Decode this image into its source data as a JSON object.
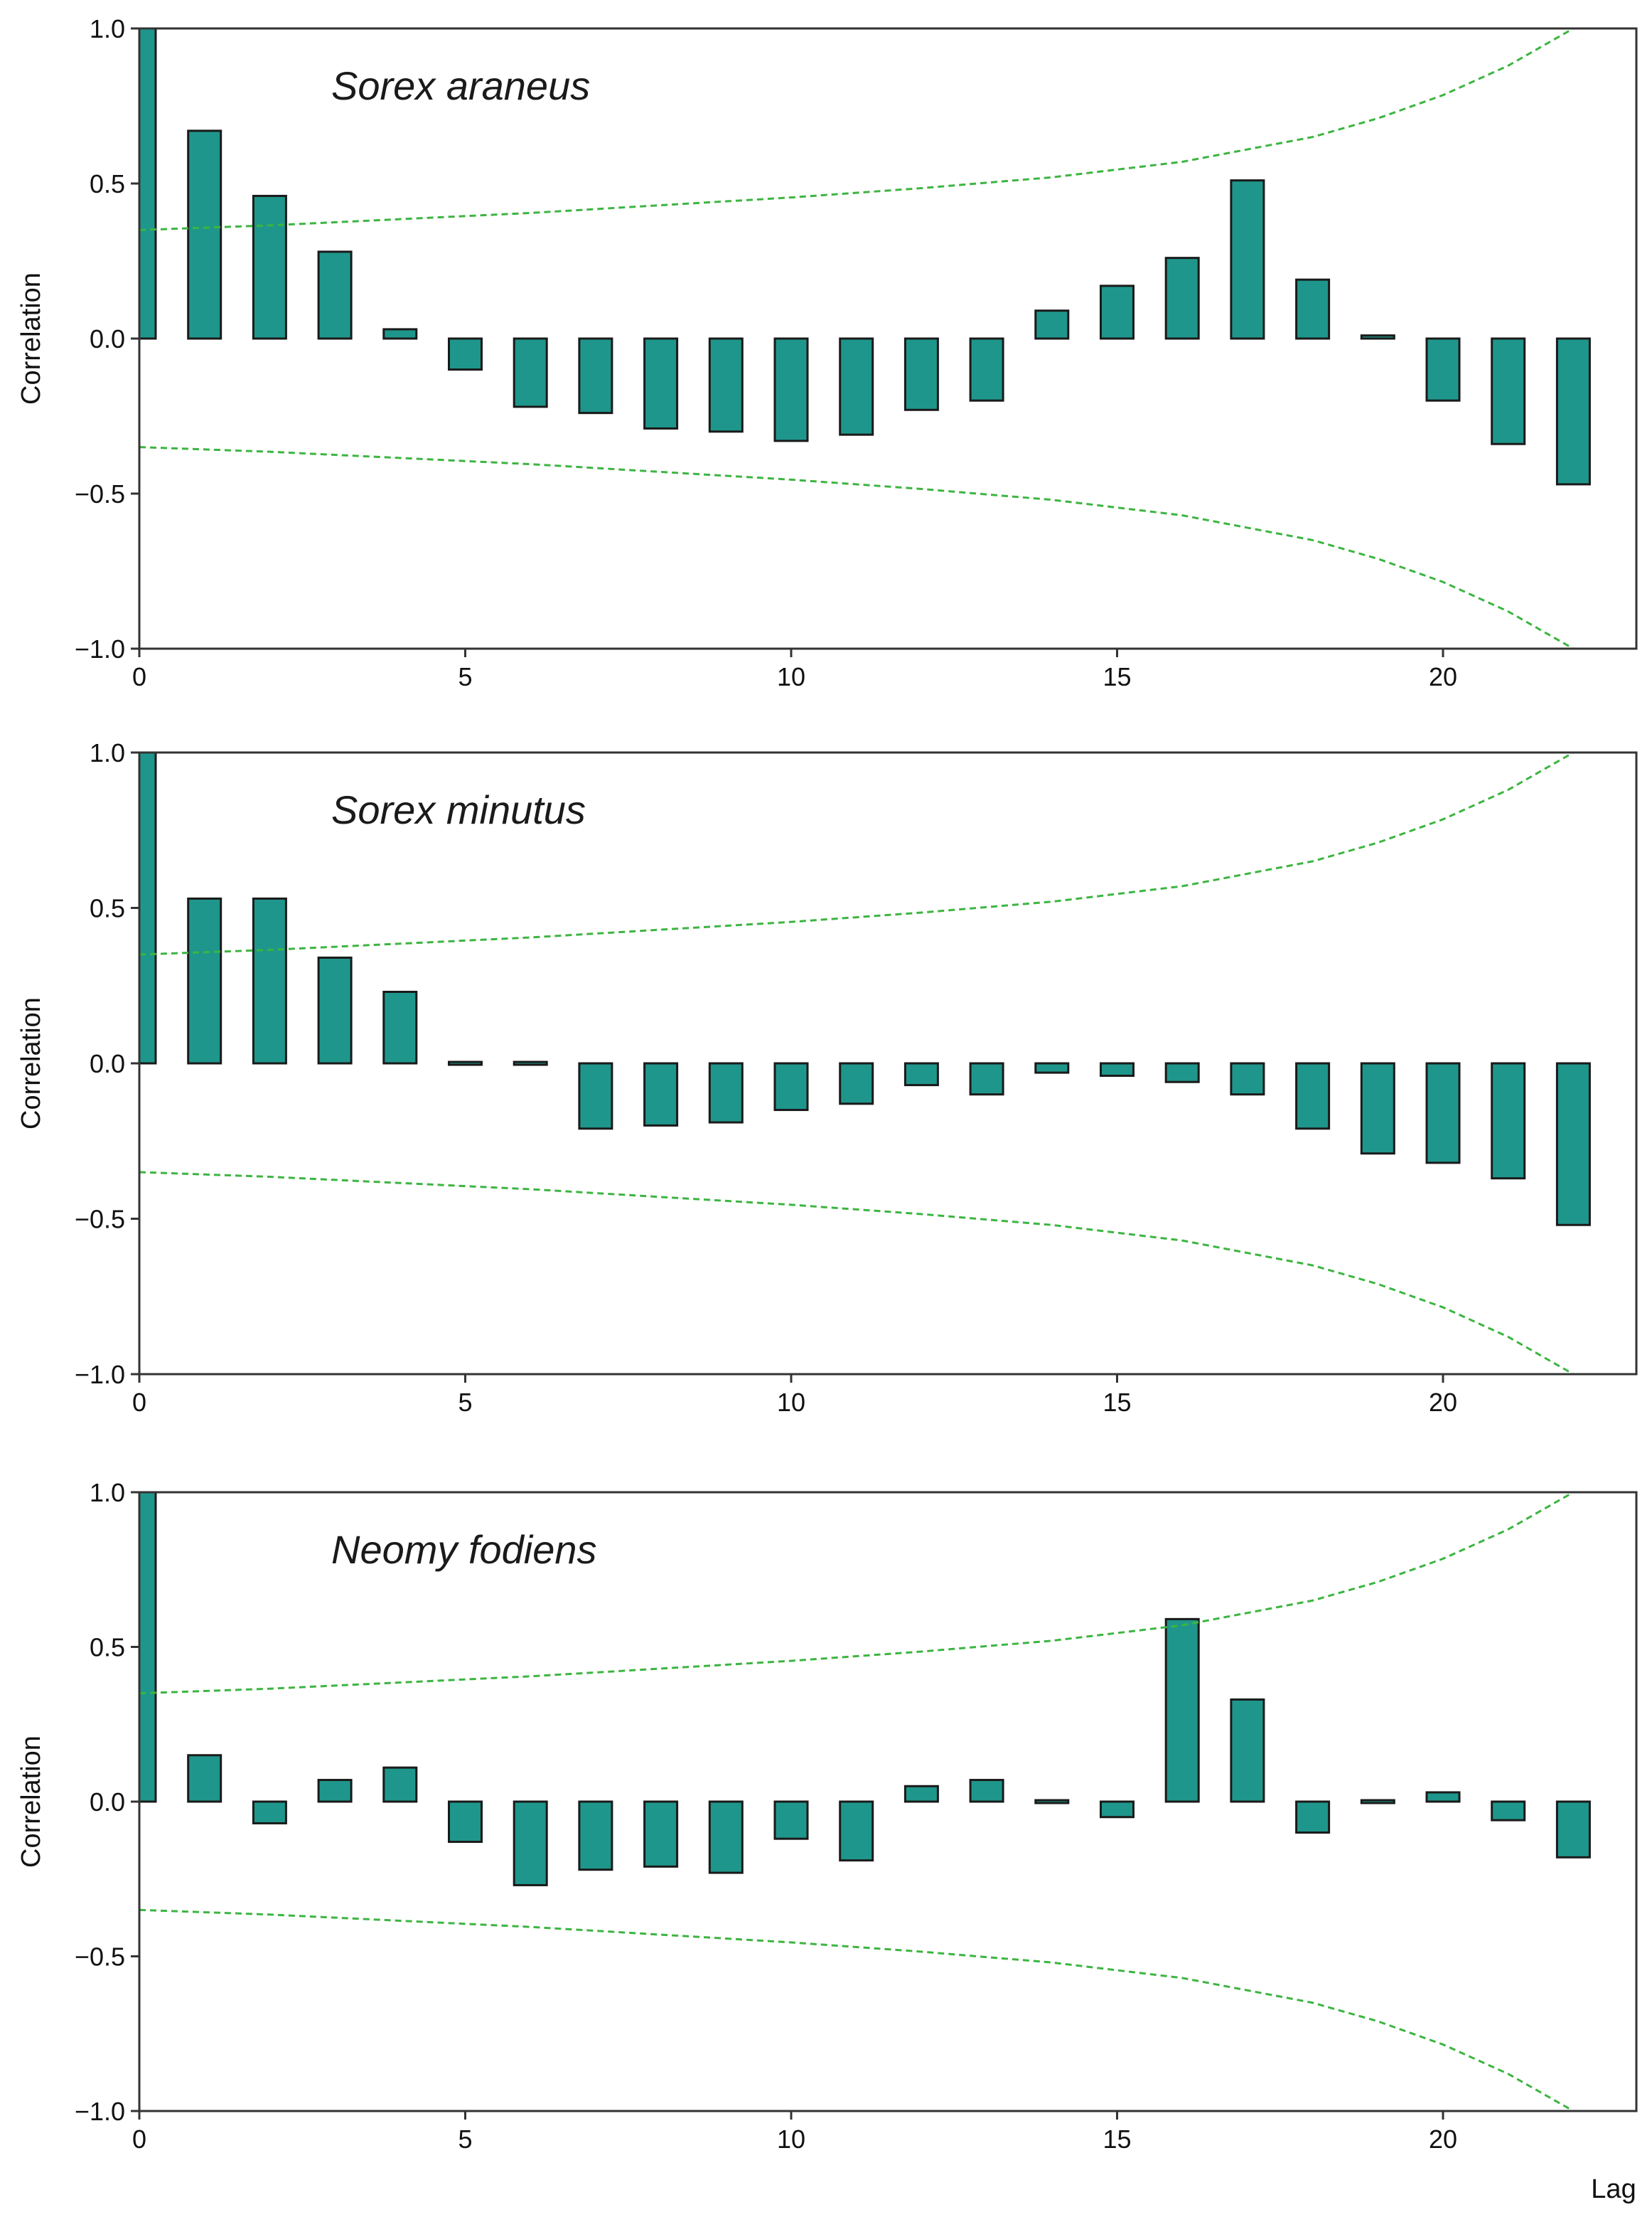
{
  "figure": {
    "x_axis_title": "Lag",
    "y_axis_title": "Correlation"
  },
  "chart_data": [
    {
      "type": "bar",
      "title": "Sorex araneus",
      "xlabel": "",
      "ylabel": "Correlation",
      "xlim": [
        0,
        23
      ],
      "ylim": [
        -1.0,
        1.0
      ],
      "x_ticks": [
        "0",
        "5",
        "10",
        "15",
        "20"
      ],
      "y_ticks": [
        "1.0",
        "0.5",
        "0.0",
        "−0.5",
        "−1.0"
      ],
      "x": [
        0,
        1,
        2,
        3,
        4,
        5,
        6,
        7,
        8,
        9,
        10,
        11,
        12,
        13,
        14,
        15,
        16,
        17,
        18,
        19,
        20,
        21,
        22
      ],
      "values": [
        1.0,
        0.67,
        0.46,
        0.28,
        0.03,
        -0.1,
        -0.22,
        -0.24,
        -0.29,
        -0.3,
        -0.33,
        -0.31,
        -0.23,
        -0.2,
        0.09,
        0.17,
        0.26,
        0.51,
        0.19,
        0.01,
        -0.2,
        -0.34,
        -0.47
      ],
      "confidence_band": {
        "lags": [
          0,
          2,
          4,
          6,
          8,
          10,
          12,
          14,
          16,
          18,
          19,
          20,
          21,
          22
        ],
        "upper": [
          0.35,
          0.365,
          0.385,
          0.405,
          0.43,
          0.455,
          0.485,
          0.52,
          0.57,
          0.65,
          0.71,
          0.785,
          0.88,
          1.0
        ]
      }
    },
    {
      "type": "bar",
      "title": "Sorex minutus",
      "xlabel": "",
      "ylabel": "Correlation",
      "xlim": [
        0,
        23
      ],
      "ylim": [
        -1.0,
        1.0
      ],
      "x_ticks": [
        "0",
        "5",
        "10",
        "15",
        "20"
      ],
      "y_ticks": [
        "1.0",
        "0.5",
        "0.0",
        "−0.5",
        "−1.0"
      ],
      "x": [
        0,
        1,
        2,
        3,
        4,
        5,
        6,
        7,
        8,
        9,
        10,
        11,
        12,
        13,
        14,
        15,
        16,
        17,
        18,
        19,
        20,
        21,
        22
      ],
      "values": [
        1.0,
        0.53,
        0.53,
        0.34,
        0.23,
        -0.005,
        -0.003,
        -0.21,
        -0.2,
        -0.19,
        -0.15,
        -0.13,
        -0.07,
        -0.1,
        -0.03,
        -0.04,
        -0.06,
        -0.1,
        -0.21,
        -0.29,
        -0.32,
        -0.37,
        -0.52
      ],
      "confidence_band": {
        "lags": [
          0,
          2,
          4,
          6,
          8,
          10,
          12,
          14,
          16,
          18,
          19,
          20,
          21,
          22
        ],
        "upper": [
          0.35,
          0.365,
          0.385,
          0.405,
          0.43,
          0.455,
          0.485,
          0.52,
          0.57,
          0.65,
          0.71,
          0.785,
          0.88,
          1.0
        ]
      }
    },
    {
      "type": "bar",
      "title": "Neomy fodiens",
      "xlabel": "Lag",
      "ylabel": "Correlation",
      "xlim": [
        0,
        23
      ],
      "ylim": [
        -1.0,
        1.0
      ],
      "x_ticks": [
        "0",
        "5",
        "10",
        "15",
        "20"
      ],
      "y_ticks": [
        "1.0",
        "0.5",
        "0.0",
        "−0.5",
        "−1.0"
      ],
      "x": [
        0,
        1,
        2,
        3,
        4,
        5,
        6,
        7,
        8,
        9,
        10,
        11,
        12,
        13,
        14,
        15,
        16,
        17,
        18,
        19,
        20,
        21,
        22
      ],
      "values": [
        1.0,
        0.15,
        -0.07,
        0.07,
        0.11,
        -0.13,
        -0.27,
        -0.22,
        -0.21,
        -0.23,
        -0.12,
        -0.19,
        0.05,
        0.07,
        -0.005,
        -0.05,
        0.59,
        0.33,
        -0.1,
        -0.003,
        0.03,
        -0.06,
        -0.18
      ],
      "confidence_band": {
        "lags": [
          0,
          2,
          4,
          6,
          8,
          10,
          12,
          14,
          16,
          18,
          19,
          20,
          21,
          22
        ],
        "upper": [
          0.35,
          0.365,
          0.385,
          0.405,
          0.43,
          0.455,
          0.485,
          0.52,
          0.57,
          0.65,
          0.71,
          0.785,
          0.88,
          1.0
        ]
      }
    }
  ]
}
